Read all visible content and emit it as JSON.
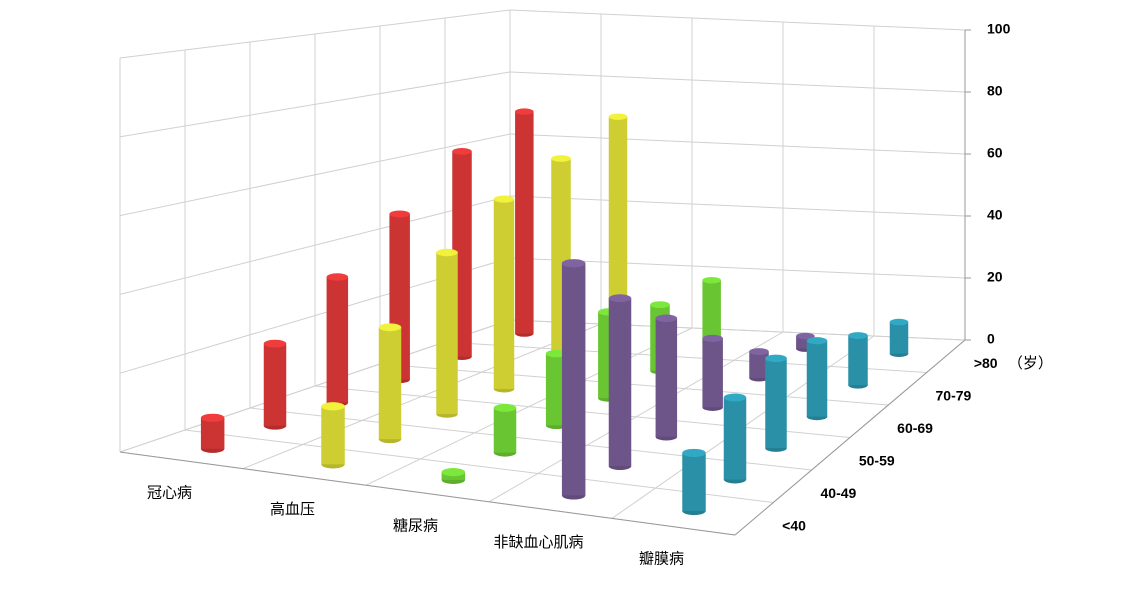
{
  "chart_data": {
    "type": "bar3d",
    "depth_categories": [
      "<40",
      "40-49",
      "50-59",
      "60-69",
      "70-79",
      ">80"
    ],
    "depth_unit": "（岁）",
    "series": [
      {
        "name": "冠心病",
        "color": "#f03c3c",
        "values": [
          8,
          22,
          35,
          48,
          62,
          70
        ]
      },
      {
        "name": "高血压",
        "color": "#f2f23c",
        "values": [
          15,
          30,
          45,
          55,
          62,
          70
        ]
      },
      {
        "name": "糖尿病",
        "color": "#7de83c",
        "values": [
          2,
          12,
          20,
          25,
          20,
          20
        ]
      },
      {
        "name": "非缺血心肌病",
        "color": "#8064a2",
        "values": [
          60,
          45,
          33,
          20,
          8,
          4
        ]
      },
      {
        "name": "瓣膜病",
        "color": "#31a9c4",
        "values": [
          15,
          22,
          25,
          22,
          15,
          10
        ]
      }
    ],
    "ylim": [
      0,
      100
    ],
    "yticks": [
      0,
      20,
      40,
      60,
      80,
      100
    ],
    "grid": true
  }
}
